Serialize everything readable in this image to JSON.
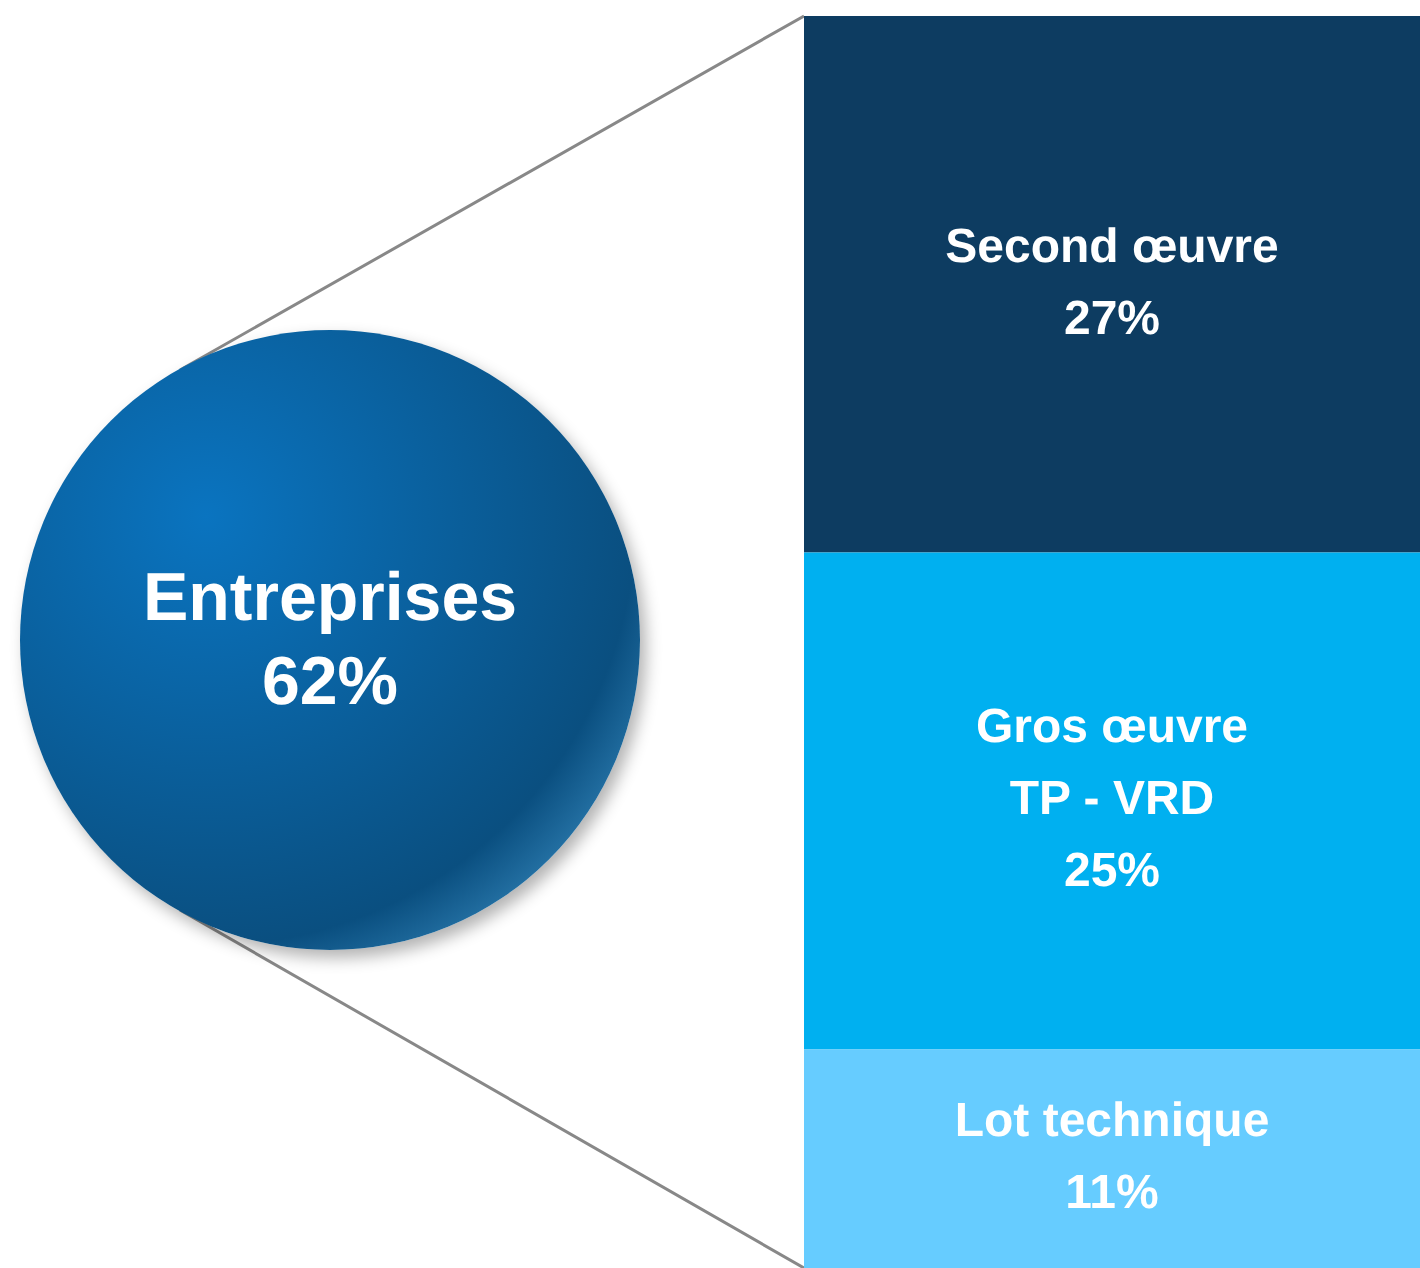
{
  "chart_data": [
    {
      "type": "other",
      "categories": [
        "Entreprises"
      ],
      "values": [
        62
      ],
      "value_labels": [
        "62%"
      ],
      "color": "#0a74c0"
    },
    {
      "type": "bar",
      "stacked": true,
      "categories": [
        null
      ],
      "series": [
        {
          "name": "Lot technique",
          "color": "#66ccff",
          "values": [
            11
          ],
          "value_labels": [
            "11%"
          ]
        },
        {
          "name": "Gros œuvre\nTP - VRD",
          "color": "#00b0f0",
          "values": [
            25
          ],
          "value_labels": [
            "25%"
          ]
        },
        {
          "name": "Second œuvre",
          "color": "#0d3c61",
          "values": [
            27
          ],
          "value_labels": [
            "27%"
          ]
        }
      ]
    }
  ]
}
